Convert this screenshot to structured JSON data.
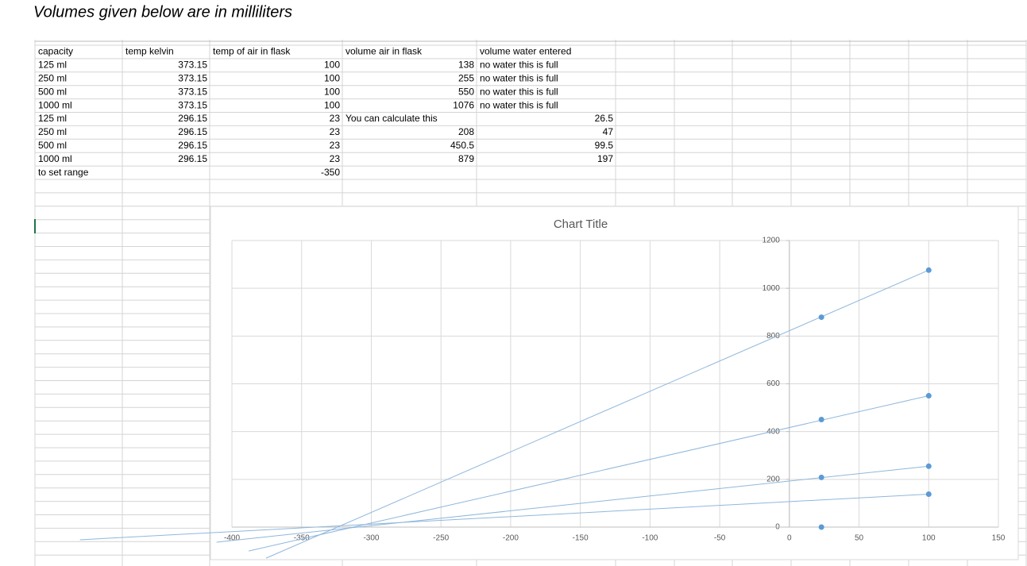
{
  "heading": "Volumes given below are in milliliters",
  "table": {
    "header": [
      "capacity",
      "temp kelvin",
      "temp of air in flask",
      "volume air in flask",
      "volume water entered"
    ],
    "rows": [
      [
        "125 ml",
        373.15,
        100,
        138,
        "no water this is full"
      ],
      [
        "250 ml",
        373.15,
        100,
        255,
        "no water this is full"
      ],
      [
        "500 ml",
        373.15,
        100,
        550,
        "no water this is full"
      ],
      [
        "1000 ml",
        373.15,
        100,
        1076,
        "no water this is full"
      ],
      [
        "125 ml",
        296.15,
        23,
        "You can calculate this",
        26.5
      ],
      [
        "250 ml",
        296.15,
        23,
        208,
        47
      ],
      [
        "500 ml",
        296.15,
        23,
        450.5,
        99.5
      ],
      [
        "1000 ml",
        296.15,
        23,
        879,
        197
      ],
      [
        "to set range",
        null,
        -350,
        null,
        null
      ]
    ]
  },
  "chart": {
    "type": "scatter",
    "title": "Chart Title",
    "xlim": [
      -400,
      150
    ],
    "xticks": [
      -400,
      -350,
      -300,
      -250,
      -200,
      -150,
      -100,
      -50,
      0,
      50,
      100,
      150
    ],
    "ylim": [
      0,
      1200
    ],
    "yticks": [
      0,
      200,
      400,
      600,
      800,
      1000,
      1200
    ],
    "grid": true,
    "color": "#5b9bd5",
    "points": {
      "x": [
        100,
        100,
        100,
        100,
        23,
        23,
        23,
        23
      ],
      "y": [
        138,
        255,
        550,
        1076,
        0,
        208,
        450.5,
        879
      ]
    },
    "trendline_color": "#8fb7dc",
    "trendlines": [
      {
        "x": [
          -375.5,
          100
        ],
        "y": [
          -130,
          1076
        ]
      },
      {
        "x": [
          -388,
          100
        ],
        "y": [
          -100,
          550
        ]
      },
      {
        "x": [
          -411,
          100
        ],
        "y": [
          -63,
          255
        ]
      },
      {
        "x": [
          -509,
          100
        ],
        "y": [
          -53,
          138
        ]
      }
    ]
  }
}
